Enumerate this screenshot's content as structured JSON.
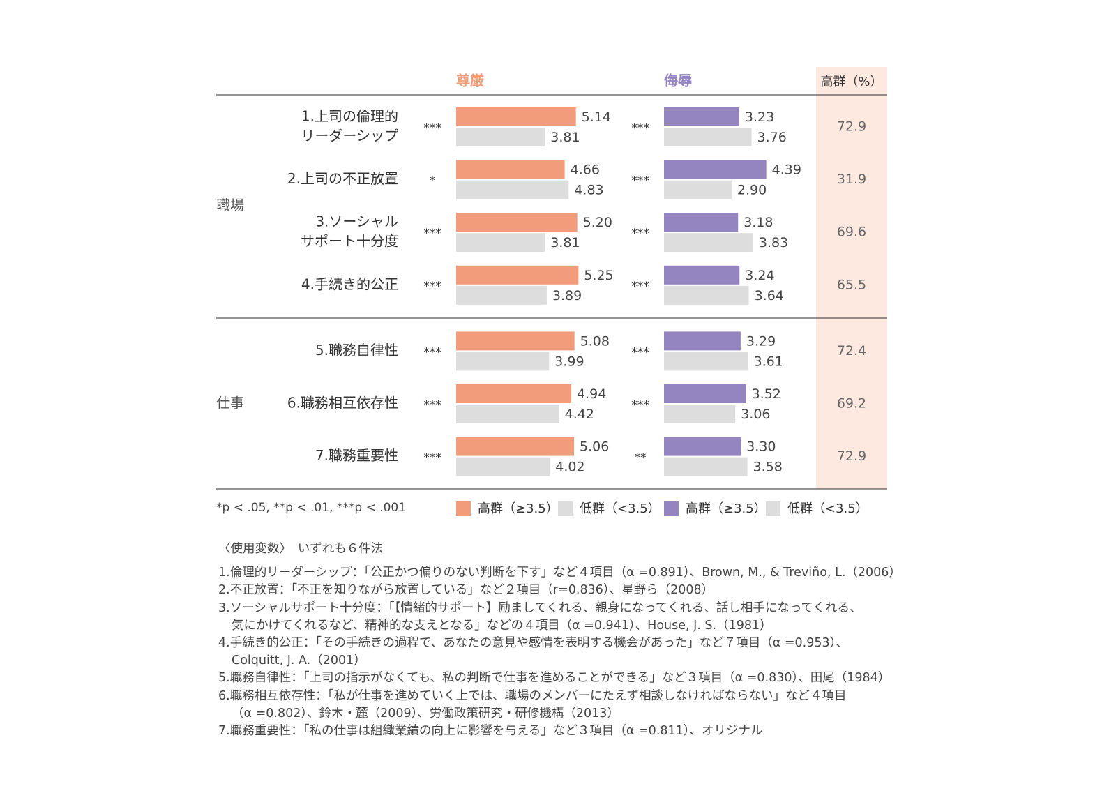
{
  "chart_data": {
    "type": "bar",
    "orientation": "horizontal",
    "panels": [
      {
        "title": "尊厳",
        "color": "#f29c7c"
      },
      {
        "title": "侮辱",
        "color": "#9484c0"
      }
    ],
    "pct_column_title": "高群（%）",
    "low_group_color": "#dddddd",
    "pct_column_bg": "#fde9df",
    "xlim": [
      0,
      7
    ],
    "groups": [
      {
        "label": "職場",
        "rows": [
          0,
          1,
          2,
          3
        ]
      },
      {
        "label": "仕事",
        "rows": [
          4,
          5,
          6
        ]
      }
    ],
    "rows": [
      {
        "label_lines": [
          "1.上司の倫理的",
          "リーダーシップ"
        ],
        "dignity_sig": "***",
        "dignity_high": 5.14,
        "dignity_low": 3.81,
        "insult_sig": "***",
        "insult_high": 3.23,
        "insult_low": 3.76,
        "high_pct": "72.9"
      },
      {
        "label_lines": [
          "2.上司の不正放置"
        ],
        "dignity_sig": "*",
        "dignity_high": 4.66,
        "dignity_low": 4.83,
        "insult_sig": "***",
        "insult_high": 4.39,
        "insult_low": 2.9,
        "high_pct": "31.9"
      },
      {
        "label_lines": [
          "3.ソーシャル",
          "サポート十分度"
        ],
        "dignity_sig": "***",
        "dignity_high": 5.2,
        "dignity_low": 3.81,
        "insult_sig": "***",
        "insult_high": 3.18,
        "insult_low": 3.83,
        "high_pct": "69.6"
      },
      {
        "label_lines": [
          "4.手続き的公正"
        ],
        "dignity_sig": "***",
        "dignity_high": 5.25,
        "dignity_low": 3.89,
        "insult_sig": "***",
        "insult_high": 3.24,
        "insult_low": 3.64,
        "high_pct": "65.5"
      },
      {
        "label_lines": [
          "5.職務自律性"
        ],
        "dignity_sig": "***",
        "dignity_high": 5.08,
        "dignity_low": 3.99,
        "insult_sig": "***",
        "insult_high": 3.29,
        "insult_low": 3.61,
        "high_pct": "72.4"
      },
      {
        "label_lines": [
          "6.職務相互依存性"
        ],
        "dignity_sig": "***",
        "dignity_high": 4.94,
        "dignity_low": 4.42,
        "insult_sig": "***",
        "insult_high": 3.52,
        "insult_low": 3.06,
        "high_pct": "69.2"
      },
      {
        "label_lines": [
          "7.職務重要性"
        ],
        "dignity_sig": "***",
        "dignity_high": 5.06,
        "dignity_low": 4.02,
        "insult_sig": "**",
        "insult_high": 3.3,
        "insult_low": 3.58,
        "high_pct": "72.9"
      }
    ],
    "significance_note": "*p < .05, **p < .01, ***p < .001",
    "legend": [
      {
        "label": "高群（≥3.5）",
        "color": "#f29c7c"
      },
      {
        "label": "低群（<3.5）",
        "color": "#dddddd"
      },
      {
        "label": "高群（≥3.5）",
        "color": "#9484c0"
      },
      {
        "label": "低群（<3.5）",
        "color": "#dddddd"
      }
    ]
  },
  "notes": {
    "title": "〈使用変数〉　いずれも６件法",
    "lines": [
      "1.倫理的リーダーシップ：「公正かつ偏りのない判断を下す」など４項目（α =0.891）、Brown, M., & Treviño, L.（2006）",
      "2.不正放置：「不正を知りながら放置している」など２項目（r=0.836）、星野ら（2008）",
      "3.ソーシャルサポート十分度：「【情緒的サポート】励ましてくれる、親身になってくれる、話し相手になってくれる、",
      "気にかけてくれるなど、精神的な支えとなる」などの４項目（α =0.941）、House, J. S.（1981）",
      "4.手続き的公正：「その手続きの過程で、あなたの意見や感情を表明する機会があった」など７項目（α =0.953）、",
      "Colquitt, J. A.（2001）",
      "5.職務自律性：「上司の指示がなくても、私の判断で仕事を進めることができる」など３項目（α =0.830）、田尾（1984）",
      "6.職務相互依存性：「私が仕事を進めていく上では、職場のメンバーにたえず相談しなければならない」など４項目",
      "（α =0.802）、鈴木・麓（2009）、労働政策研究・研修機構（2013）",
      "7.職務重要性：「私の仕事は組織業績の向上に影響を与える」など３項目（α =0.811）、オリジナル"
    ]
  }
}
